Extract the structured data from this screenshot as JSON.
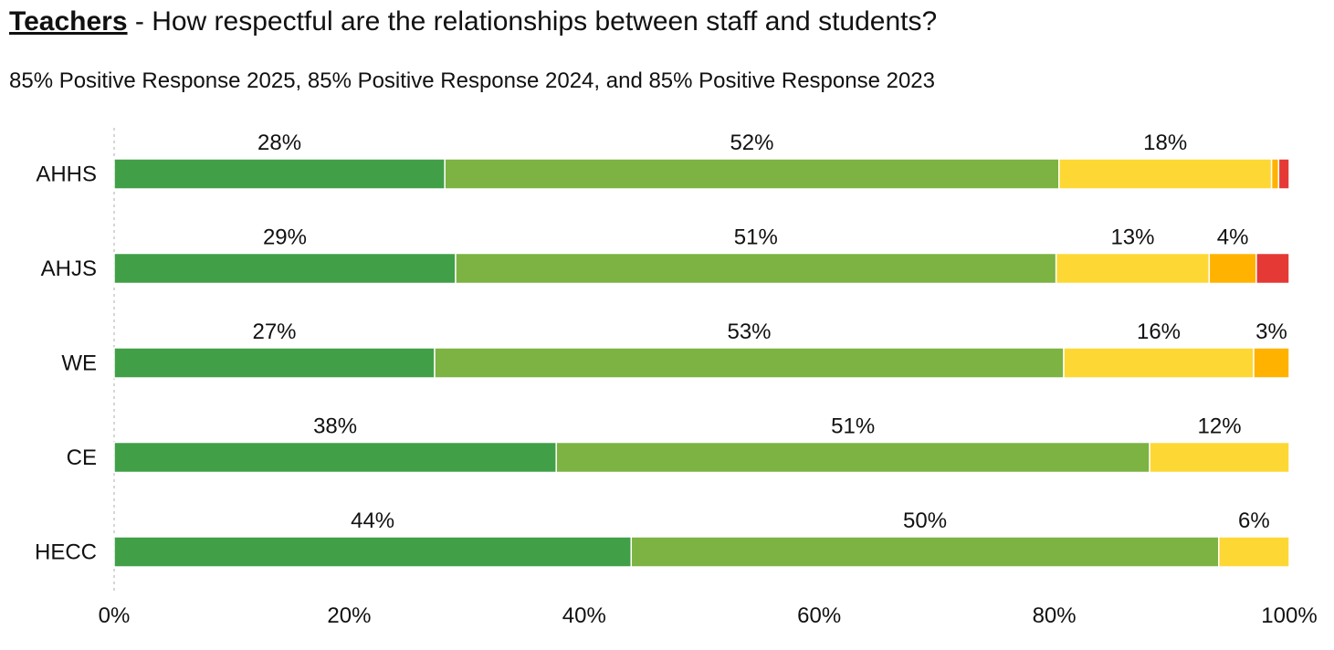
{
  "header": {
    "subject": "Teachers",
    "separator": " - ",
    "question": "How respectful are the relationships between staff and students?",
    "summary": "85% Positive Response 2025, 85% Positive Response 2024, and 85% Positive Response 2023"
  },
  "chart_data": {
    "type": "bar",
    "orientation": "horizontal",
    "stacked": true,
    "categories": [
      "AHHS",
      "AHJS",
      "WE",
      "CE",
      "HECC"
    ],
    "series": [
      {
        "color": "#41a047",
        "values": [
          28,
          29,
          27,
          38,
          44
        ],
        "labels": [
          "28%",
          "29%",
          "27%",
          "38%",
          "44%"
        ]
      },
      {
        "color": "#7cb342",
        "values": [
          52,
          51,
          53,
          51,
          50
        ],
        "labels": [
          "52%",
          "51%",
          "53%",
          "51%",
          "50%"
        ]
      },
      {
        "color": "#fdd835",
        "values": [
          18,
          13,
          16,
          12,
          6
        ],
        "labels": [
          "18%",
          "13%",
          "16%",
          "12%",
          "6%"
        ]
      },
      {
        "color": "#ffb300",
        "values": [
          0.6,
          4,
          3,
          0,
          0
        ],
        "labels": [
          "",
          "4%",
          "3%",
          "",
          ""
        ]
      },
      {
        "color": "#e53935",
        "values": [
          0.9,
          2.8,
          0,
          0,
          0
        ],
        "labels": [
          "",
          "",
          "",
          "",
          ""
        ]
      }
    ],
    "xlim": [
      0,
      100
    ],
    "xticks": [
      "0%",
      "20%",
      "40%",
      "60%",
      "80%",
      "100%"
    ],
    "grid": false,
    "legend": "none"
  }
}
